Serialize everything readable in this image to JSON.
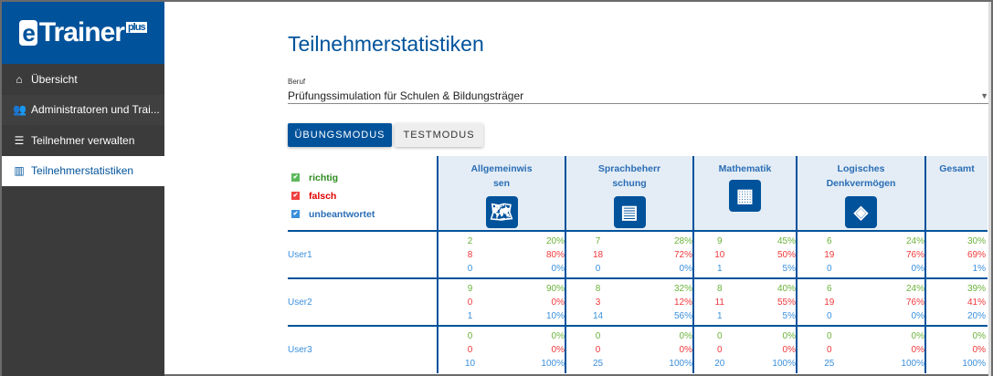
{
  "sidebar": {
    "logo": {
      "e": "e",
      "trainer": "Trainer",
      "plus": "plus"
    },
    "items": [
      {
        "label": "Übersicht",
        "icon": "home-icon"
      },
      {
        "label": "Administratoren und Trai...",
        "icon": "users-icon"
      },
      {
        "label": "Teilnehmer verwalten",
        "icon": "list-icon"
      },
      {
        "label": "Teilnehmerstatistiken",
        "icon": "chart-icon",
        "active": true
      }
    ]
  },
  "main": {
    "title": "Teilnehmerstatistiken",
    "beruf_label": "Beruf",
    "beruf_value": "Prüfungssimulation für Schulen & Bildungsträger",
    "modes": [
      "ÜBUNGSMODUS",
      "TESTMODUS"
    ],
    "legend": {
      "richtig": "richtig",
      "falsch": "falsch",
      "unbeantwortet": "unbeantwortet"
    },
    "colors": {
      "richtig": "#6bb33a",
      "falsch": "#f0383a",
      "unbeantwortet": "#3a8fdc"
    },
    "columns": [
      {
        "label": "Allgemeinwissen",
        "icon": "world-map-icon"
      },
      {
        "label": "Sprachbeherrschung",
        "icon": "document-speech-icon"
      },
      {
        "label": "Mathematik",
        "icon": "calculator-icon"
      },
      {
        "label": "Logisches Denkvermögen",
        "icon": "flowchart-icon"
      },
      {
        "label": "Gesamt"
      }
    ],
    "rows": [
      {
        "user": "User1",
        "cells": [
          [
            "2",
            "20%",
            "8",
            "80%",
            "0",
            "0%"
          ],
          [
            "7",
            "28%",
            "18",
            "72%",
            "0",
            "0%"
          ],
          [
            "9",
            "45%",
            "10",
            "50%",
            "1",
            "5%"
          ],
          [
            "6",
            "24%",
            "19",
            "76%",
            "0",
            "0%"
          ]
        ],
        "total": [
          "30%",
          "69%",
          "1%"
        ]
      },
      {
        "user": "User2",
        "cells": [
          [
            "9",
            "90%",
            "0",
            "0%",
            "1",
            "10%"
          ],
          [
            "8",
            "32%",
            "3",
            "12%",
            "14",
            "56%"
          ],
          [
            "8",
            "40%",
            "11",
            "55%",
            "1",
            "5%"
          ],
          [
            "6",
            "24%",
            "19",
            "76%",
            "0",
            "0%"
          ]
        ],
        "total": [
          "39%",
          "41%",
          "20%"
        ]
      },
      {
        "user": "User3",
        "cells": [
          [
            "0",
            "0%",
            "0",
            "0%",
            "10",
            "100%"
          ],
          [
            "0",
            "0%",
            "0",
            "0%",
            "25",
            "100%"
          ],
          [
            "0",
            "0%",
            "0",
            "0%",
            "20",
            "100%"
          ],
          [
            "0",
            "0%",
            "0",
            "0%",
            "25",
            "100%"
          ]
        ],
        "total": [
          "0%",
          "0%",
          "100%"
        ]
      }
    ]
  }
}
